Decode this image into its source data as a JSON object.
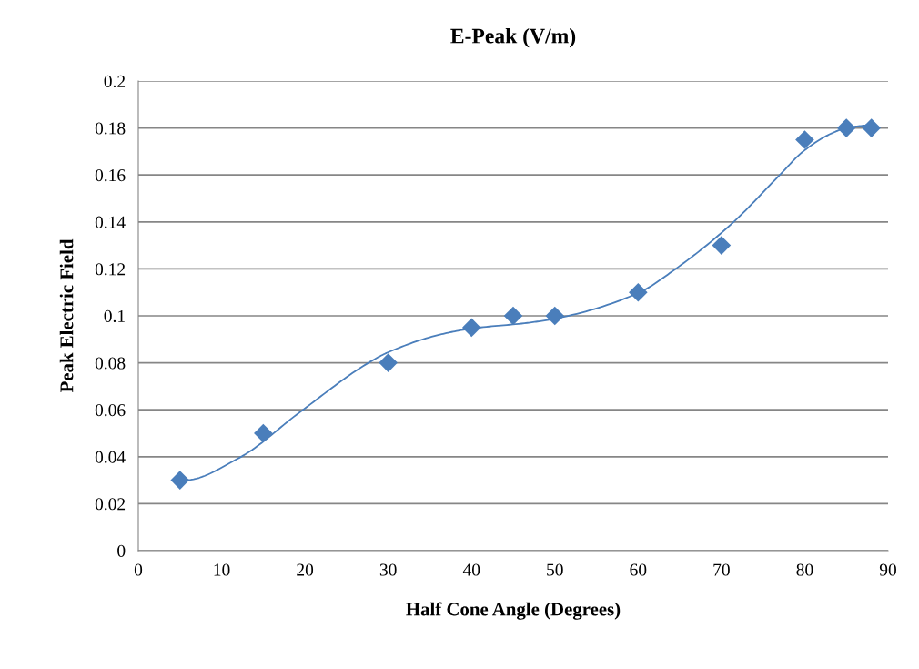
{
  "chart_data": {
    "type": "scatter",
    "title": "E-Peak (V/m)",
    "xlabel": "Half Cone Angle (Degrees)",
    "ylabel": "Peak Electric Field",
    "xlim": [
      0,
      90
    ],
    "xticks": [
      0,
      10,
      20,
      30,
      40,
      50,
      60,
      70,
      80,
      90
    ],
    "ylim": [
      0,
      0.2
    ],
    "yticks": [
      0,
      0.02,
      0.04,
      0.06,
      0.08,
      0.1,
      0.12,
      0.14,
      0.16,
      0.18,
      0.2
    ],
    "grid": "y",
    "legend": false,
    "series": [
      {
        "marker": "diamond",
        "color": "#4a7ebb",
        "x": [
          5,
          15,
          30,
          40,
          45,
          50,
          60,
          70,
          80,
          85,
          88
        ],
        "values": [
          0.03,
          0.05,
          0.08,
          0.095,
          0.1,
          0.1,
          0.11,
          0.13,
          0.175,
          0.18,
          0.18
        ]
      },
      {
        "type": "line",
        "marker": "none",
        "color": "#4a7ebb",
        "x": [
          5,
          5.6,
          12.1,
          19.4,
          27.4,
          30,
          36.2,
          40,
          46.7,
          50,
          60,
          64.5,
          71.1,
          77,
          79.8,
          83.1,
          85,
          88
        ],
        "values": [
          0.03,
          0.03,
          0.0395,
          0.059,
          0.0795,
          0.0845,
          0.092,
          0.0946,
          0.097,
          0.0988,
          0.1097,
          0.12,
          0.1388,
          0.16,
          0.17,
          0.1775,
          0.18,
          0.1814
        ]
      }
    ]
  }
}
